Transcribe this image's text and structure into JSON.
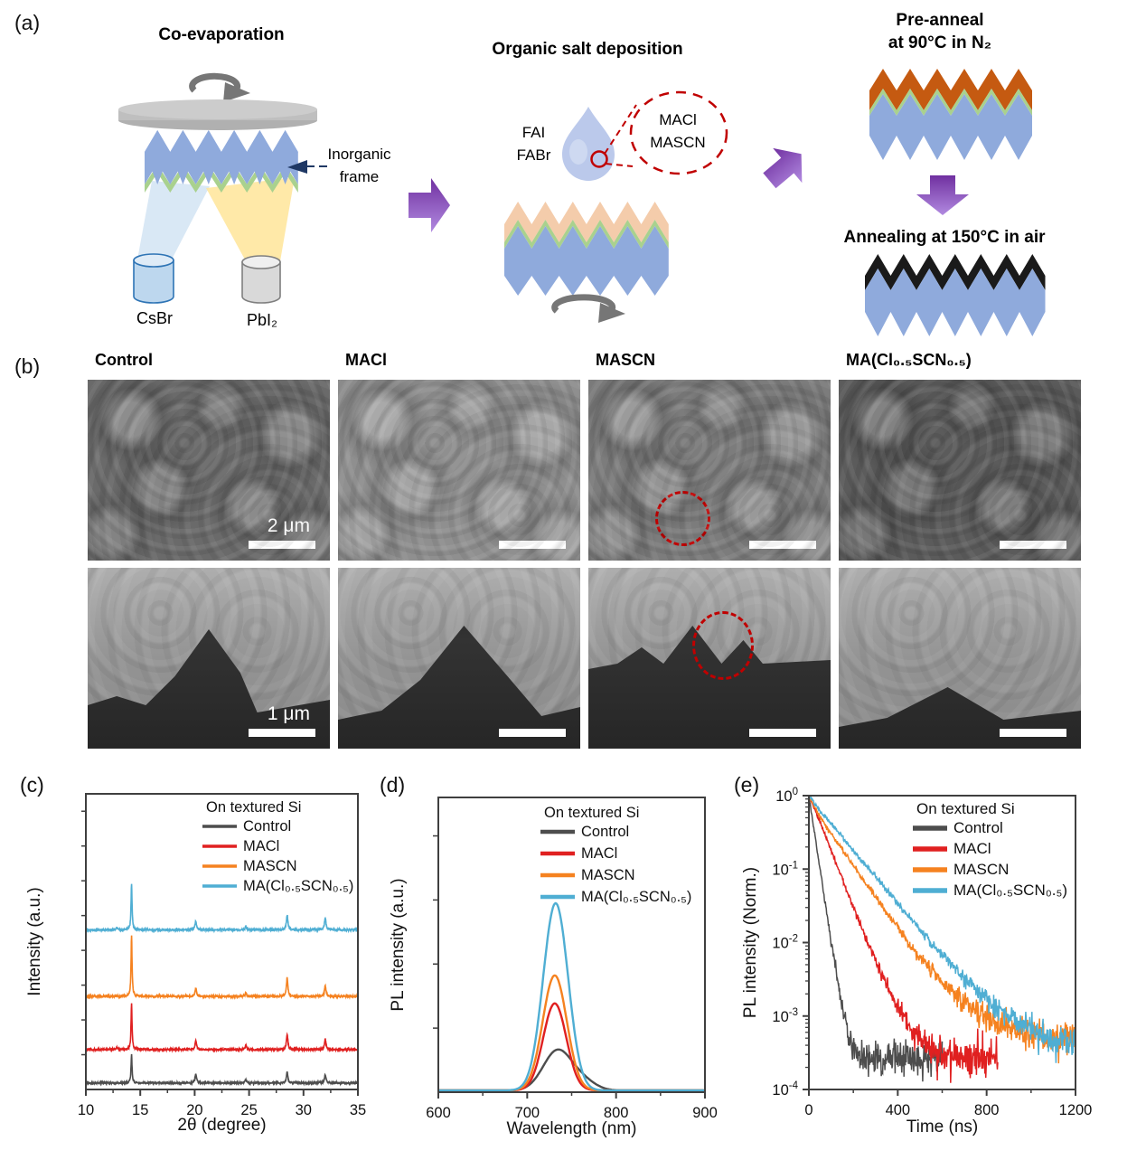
{
  "panels": {
    "a": "(a)",
    "b": "(b)",
    "c": "(c)",
    "d": "(d)",
    "e": "(e)"
  },
  "panel_a": {
    "step1_title": "Co-evaporation",
    "step2_title": "Organic salt deposition",
    "step3_title_line1": "Pre-anneal",
    "step3_title_line2": "at 90°C in N₂",
    "step4_title": "Annealing at 150°C in air",
    "inorganic_frame_line1": "Inorganic",
    "inorganic_frame_line2": "frame",
    "source_left": "CsBr",
    "source_right": "PbI₂",
    "solution_line1": "FAI",
    "solution_line2": "FABr",
    "additive_line1": "MACl",
    "additive_line2": "MASCN",
    "colors": {
      "substrate_blue": "#8faadc",
      "inorganic_green": "#a9d18e",
      "organic_peach": "#f4ccab",
      "preanneal_orange": "#c55a11",
      "final_black": "#1a1a1a",
      "disc_gray": "#bfbfbf",
      "arrow_gray": "#767676",
      "beam_blue": "#cfe2f3",
      "beam_yellow": "#ffe599",
      "csbr_fill": "#bdd7ee",
      "csbr_stroke": "#2e74b5",
      "pbi2_fill": "#d9d9d9",
      "pbi2_stroke": "#7f7f7f",
      "droplet": "#b7c6ea",
      "dashed_red": "#c00000",
      "purple_dark": "#7030a0",
      "purple_light": "#b18ae0",
      "annotation_arrow_navy": "#1f3864"
    }
  },
  "panel_b": {
    "columns": [
      "Control",
      "MACl",
      "MASCN",
      "MA(Cl₀.₅SCN₀.₅)"
    ],
    "scalebar_top": "2 μm",
    "scalebar_bottom": "1 μm"
  },
  "chart_data": [
    {
      "id": "xrd",
      "type": "line",
      "annotation": "On textured Si",
      "xlabel": "2θ (degree)",
      "ylabel": "Intensity (a.u.)",
      "xlim": [
        10,
        35
      ],
      "xticks": [
        10,
        15,
        20,
        25,
        30,
        35
      ],
      "grid": false,
      "legend_position": "top-right-inside",
      "peak_positions_2theta": [
        14.2,
        20.1,
        24.7,
        28.5,
        32.0
      ],
      "series": [
        {
          "name": "Control",
          "color": "#4d4d4d",
          "baseline": 0.022,
          "peaks": [
            [
              14.2,
              0.095
            ],
            [
              20.1,
              0.03
            ],
            [
              24.7,
              0.013
            ],
            [
              28.5,
              0.036
            ],
            [
              32.0,
              0.028
            ]
          ]
        },
        {
          "name": "MACl",
          "color": "#e02020",
          "baseline": 0.135,
          "peaks": [
            [
              12.85,
              0.008
            ],
            [
              14.2,
              0.155
            ],
            [
              20.1,
              0.03
            ],
            [
              24.7,
              0.014
            ],
            [
              28.5,
              0.052
            ],
            [
              32.0,
              0.036
            ]
          ]
        },
        {
          "name": "MASCN",
          "color": "#f58220",
          "baseline": 0.315,
          "peaks": [
            [
              14.2,
              0.205
            ],
            [
              20.1,
              0.028
            ],
            [
              24.7,
              0.012
            ],
            [
              28.5,
              0.062
            ],
            [
              32.0,
              0.036
            ]
          ]
        },
        {
          "name": "MA(Cl₀.₅SCN₀.₅)",
          "color": "#4faed3",
          "baseline": 0.54,
          "peaks": [
            [
              12.85,
              0.008
            ],
            [
              14.2,
              0.155
            ],
            [
              20.1,
              0.03
            ],
            [
              24.7,
              0.011
            ],
            [
              28.5,
              0.05
            ],
            [
              32.0,
              0.042
            ]
          ]
        }
      ]
    },
    {
      "id": "pl",
      "type": "line",
      "annotation": "On textured Si",
      "xlabel": "Wavelength (nm)",
      "ylabel": "PL intensity (a.u.)",
      "xlim": [
        600,
        900
      ],
      "xticks": [
        600,
        700,
        800,
        900
      ],
      "grid": false,
      "legend_position": "top-right-inside",
      "peak_wavelength_nm": 732,
      "series": [
        {
          "name": "Control",
          "color": "#4d4d4d",
          "peak_height": 0.135,
          "center": 734,
          "sigma": 16,
          "shoulder": [
            763,
            0.03,
            14
          ]
        },
        {
          "name": "MACl",
          "color": "#e02020",
          "peak_height": 0.295,
          "center": 731,
          "sigma": 13
        },
        {
          "name": "MASCN",
          "color": "#f58220",
          "peak_height": 0.39,
          "center": 731,
          "sigma": 13.5
        },
        {
          "name": "MA(Cl₀.₅SCN₀.₅)",
          "color": "#4faed3",
          "peak_height": 0.635,
          "center": 732,
          "sigma": 14
        }
      ]
    },
    {
      "id": "trpl",
      "type": "line",
      "yscale": "log",
      "annotation": "On textured Si",
      "xlabel": "Time (ns)",
      "ylabel": "PL intensity (Norm.)",
      "xlim": [
        0,
        1200
      ],
      "xticks": [
        0,
        400,
        800,
        1200
      ],
      "ylim": [
        0.0001,
        1
      ],
      "grid": false,
      "legend_position": "top-right-inside",
      "series": [
        {
          "name": "Control",
          "color": "#4d4d4d",
          "noise_floor": 0.00026,
          "t_end": 600,
          "points": [
            [
              0,
              1
            ],
            [
              20,
              0.4
            ],
            [
              40,
              0.16
            ],
            [
              60,
              0.062
            ],
            [
              80,
              0.025
            ],
            [
              100,
              0.0105
            ],
            [
              120,
              0.0046
            ],
            [
              140,
              0.0021
            ],
            [
              160,
              0.00098
            ],
            [
              180,
              0.00052
            ],
            [
              200,
              0.00036
            ],
            [
              230,
              0.00029
            ],
            [
              260,
              0.00027
            ],
            [
              300,
              0.00026
            ],
            [
              600,
              0.00026
            ]
          ]
        },
        {
          "name": "MACl",
          "color": "#e02020",
          "noise_floor": 0.00027,
          "t_end": 850,
          "points": [
            [
              0,
              1
            ],
            [
              40,
              0.52
            ],
            [
              80,
              0.26
            ],
            [
              120,
              0.125
            ],
            [
              160,
              0.062
            ],
            [
              200,
              0.031
            ],
            [
              240,
              0.0155
            ],
            [
              280,
              0.008
            ],
            [
              320,
              0.0042
            ],
            [
              360,
              0.0023
            ],
            [
              400,
              0.00135
            ],
            [
              440,
              0.00082
            ],
            [
              480,
              0.00055
            ],
            [
              520,
              0.00041
            ],
            [
              560,
              0.00034
            ],
            [
              600,
              0.0003
            ],
            [
              650,
              0.00028
            ],
            [
              850,
              0.00027
            ]
          ]
        },
        {
          "name": "MASCN",
          "color": "#f58220",
          "noise_floor": 0.00049,
          "t_end": 1200,
          "points": [
            [
              0,
              1
            ],
            [
              50,
              0.52
            ],
            [
              100,
              0.3
            ],
            [
              150,
              0.185
            ],
            [
              200,
              0.112
            ],
            [
              250,
              0.068
            ],
            [
              300,
              0.042
            ],
            [
              350,
              0.026
            ],
            [
              400,
              0.016
            ],
            [
              450,
              0.01
            ],
            [
              500,
              0.0063
            ],
            [
              550,
              0.0042
            ],
            [
              600,
              0.0029
            ],
            [
              650,
              0.0021
            ],
            [
              700,
              0.00155
            ],
            [
              750,
              0.00118
            ],
            [
              800,
              0.00093
            ],
            [
              850,
              0.00078
            ],
            [
              900,
              0.00067
            ],
            [
              950,
              0.0006
            ],
            [
              1000,
              0.00056
            ],
            [
              1100,
              0.00052
            ],
            [
              1200,
              0.0005
            ]
          ]
        },
        {
          "name": "MA(Cl₀.₅SCN₀.₅)",
          "color": "#4faed3",
          "noise_floor": 0.00037,
          "t_end": 1200,
          "points": [
            [
              0,
              1
            ],
            [
              50,
              0.62
            ],
            [
              100,
              0.42
            ],
            [
              150,
              0.275
            ],
            [
              200,
              0.178
            ],
            [
              250,
              0.118
            ],
            [
              300,
              0.078
            ],
            [
              350,
              0.052
            ],
            [
              400,
              0.034
            ],
            [
              450,
              0.0225
            ],
            [
              500,
              0.015
            ],
            [
              550,
              0.01
            ],
            [
              600,
              0.0068
            ],
            [
              650,
              0.0047
            ],
            [
              700,
              0.0033
            ],
            [
              750,
              0.0024
            ],
            [
              800,
              0.00175
            ],
            [
              850,
              0.0013
            ],
            [
              900,
              0.001
            ],
            [
              950,
              0.0008
            ],
            [
              1000,
              0.00066
            ],
            [
              1050,
              0.00056
            ],
            [
              1100,
              0.00048
            ],
            [
              1150,
              0.00042
            ],
            [
              1200,
              0.00038
            ]
          ]
        }
      ]
    }
  ]
}
